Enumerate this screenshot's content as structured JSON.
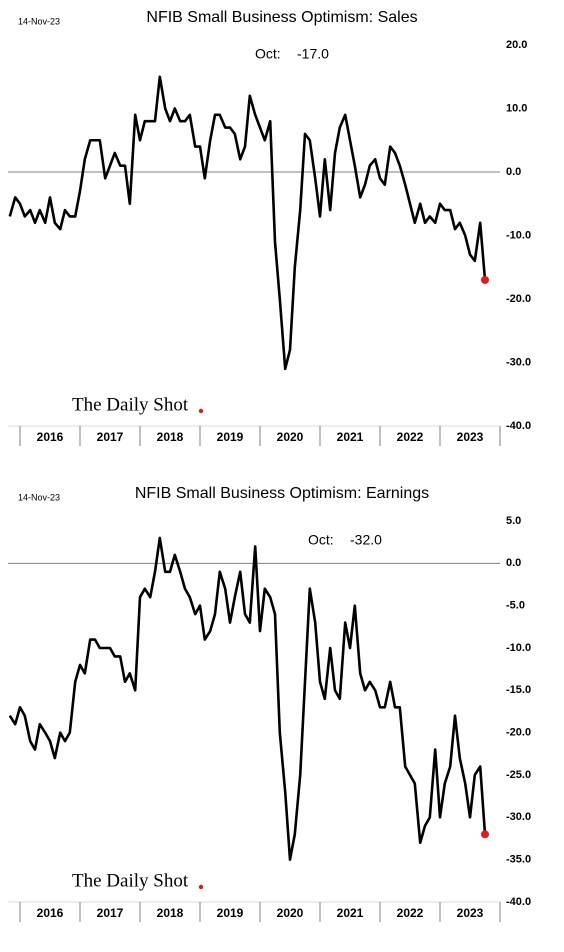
{
  "chart_data": [
    {
      "type": "line",
      "date": "14-Nov-23",
      "title": "NFIB Small Business Optimism: Sales",
      "last_label": "Oct:",
      "last_value_label": "-17.0",
      "watermark": "The Daily Shot",
      "x": [
        2015.83,
        2015.92,
        2016.0,
        2016.08,
        2016.17,
        2016.25,
        2016.33,
        2016.42,
        2016.5,
        2016.58,
        2016.67,
        2016.75,
        2016.83,
        2016.92,
        2017.0,
        2017.08,
        2017.17,
        2017.25,
        2017.33,
        2017.42,
        2017.5,
        2017.58,
        2017.67,
        2017.75,
        2017.83,
        2017.92,
        2018.0,
        2018.08,
        2018.17,
        2018.25,
        2018.33,
        2018.42,
        2018.5,
        2018.58,
        2018.67,
        2018.75,
        2018.83,
        2018.92,
        2019.0,
        2019.08,
        2019.17,
        2019.25,
        2019.33,
        2019.42,
        2019.5,
        2019.58,
        2019.67,
        2019.75,
        2019.83,
        2019.92,
        2020.0,
        2020.08,
        2020.17,
        2020.25,
        2020.33,
        2020.42,
        2020.5,
        2020.58,
        2020.67,
        2020.75,
        2020.83,
        2020.92,
        2021.0,
        2021.08,
        2021.17,
        2021.25,
        2021.33,
        2021.42,
        2021.5,
        2021.58,
        2021.67,
        2021.75,
        2021.83,
        2021.92,
        2022.0,
        2022.08,
        2022.17,
        2022.25,
        2022.33,
        2022.42,
        2022.5,
        2022.58,
        2022.67,
        2022.75,
        2022.83,
        2022.92,
        2023.0,
        2023.08,
        2023.17,
        2023.25,
        2023.33,
        2023.42,
        2023.5,
        2023.58,
        2023.67,
        2023.75
      ],
      "series": [
        {
          "color": "#000000",
          "marker_color": "#e31a1c",
          "values": [
            -7,
            -4,
            -5,
            -7,
            -6,
            -8,
            -6,
            -8,
            -4,
            -8,
            -9,
            -6,
            -7,
            -7,
            -3,
            2,
            5,
            5,
            5,
            -1,
            1,
            3,
            1,
            1,
            -5,
            9,
            5,
            8,
            8,
            8,
            15,
            10,
            8,
            10,
            8,
            8,
            9,
            4,
            4,
            -1,
            5,
            9,
            9,
            7,
            7,
            6,
            2,
            4,
            12,
            9,
            7,
            5,
            8,
            -11,
            -20,
            -31,
            -28,
            -15,
            -6,
            6,
            5,
            -1,
            -7,
            2,
            -6,
            3,
            7,
            9,
            5,
            1,
            -4,
            -2,
            1,
            2,
            -1,
            -2,
            4,
            3,
            1,
            -2,
            -5,
            -8,
            -5,
            -8,
            -7,
            -8,
            -5,
            -6,
            -6,
            -9,
            -8,
            -10,
            -13,
            -14,
            -8,
            -17
          ]
        }
      ],
      "xlim": [
        2015.7,
        2024.0
      ],
      "xticks": [
        {
          "value": 2016.5,
          "label": "2016"
        },
        {
          "value": 2017.5,
          "label": "2017"
        },
        {
          "value": 2018.5,
          "label": "2018"
        },
        {
          "value": 2019.5,
          "label": "2019"
        },
        {
          "value": 2020.5,
          "label": "2020"
        },
        {
          "value": 2021.5,
          "label": "2021"
        },
        {
          "value": 2022.5,
          "label": "2022"
        },
        {
          "value": 2023.5,
          "label": "2023"
        }
      ],
      "ylim": [
        -40,
        20
      ],
      "yticks": [
        {
          "value": 20,
          "label": "20.0"
        },
        {
          "value": 10,
          "label": "10.0"
        },
        {
          "value": 0,
          "label": "0.0"
        },
        {
          "value": -10,
          "label": "-10.0"
        },
        {
          "value": -20,
          "label": "-20.0"
        },
        {
          "value": -30,
          "label": "-30.0"
        },
        {
          "value": -40,
          "label": "-40.0"
        }
      ],
      "zero_line": true
    },
    {
      "type": "line",
      "date": "14-Nov-23",
      "title": "NFIB Small Business Optimism: Earnings",
      "last_label": "Oct:",
      "last_value_label": "-32.0",
      "watermark": "The Daily Shot",
      "x": [
        2015.83,
        2015.92,
        2016.0,
        2016.08,
        2016.17,
        2016.25,
        2016.33,
        2016.42,
        2016.5,
        2016.58,
        2016.67,
        2016.75,
        2016.83,
        2016.92,
        2017.0,
        2017.08,
        2017.17,
        2017.25,
        2017.33,
        2017.42,
        2017.5,
        2017.58,
        2017.67,
        2017.75,
        2017.83,
        2017.92,
        2018.0,
        2018.08,
        2018.17,
        2018.25,
        2018.33,
        2018.42,
        2018.5,
        2018.58,
        2018.67,
        2018.75,
        2018.83,
        2018.92,
        2019.0,
        2019.08,
        2019.17,
        2019.25,
        2019.33,
        2019.42,
        2019.5,
        2019.58,
        2019.67,
        2019.75,
        2019.83,
        2019.92,
        2020.0,
        2020.08,
        2020.17,
        2020.25,
        2020.33,
        2020.42,
        2020.5,
        2020.58,
        2020.67,
        2020.75,
        2020.83,
        2020.92,
        2021.0,
        2021.08,
        2021.17,
        2021.25,
        2021.33,
        2021.42,
        2021.5,
        2021.58,
        2021.67,
        2021.75,
        2021.83,
        2021.92,
        2022.0,
        2022.08,
        2022.17,
        2022.25,
        2022.33,
        2022.42,
        2022.5,
        2022.58,
        2022.67,
        2022.75,
        2022.83,
        2022.92,
        2023.0,
        2023.08,
        2023.17,
        2023.25,
        2023.33,
        2023.42,
        2023.5,
        2023.58,
        2023.67,
        2023.75
      ],
      "series": [
        {
          "color": "#000000",
          "marker_color": "#e31a1c",
          "values": [
            -18,
            -19,
            -17,
            -18,
            -21,
            -22,
            -19,
            -20,
            -21,
            -23,
            -20,
            -21,
            -20,
            -14,
            -12,
            -13,
            -9,
            -9,
            -10,
            -10,
            -10,
            -11,
            -11,
            -14,
            -13,
            -15,
            -4,
            -3,
            -4,
            -1,
            3,
            -1,
            -1,
            1,
            -1,
            -3,
            -4,
            -6,
            -5,
            -9,
            -8,
            -6,
            -1,
            -3,
            -7,
            -4,
            -1,
            -6,
            -7,
            2,
            -8,
            -3,
            -4,
            -6,
            -20,
            -27,
            -35,
            -32,
            -25,
            -14,
            -3,
            -7,
            -14,
            -16,
            -10,
            -15,
            -16,
            -7,
            -10,
            -5,
            -13,
            -15,
            -14,
            -15,
            -17,
            -17,
            -14,
            -17,
            -17,
            -24,
            -25,
            -26,
            -33,
            -31,
            -30,
            -22,
            -30,
            -26,
            -24,
            -18,
            -23,
            -26,
            -30,
            -25,
            -24,
            -32
          ]
        }
      ],
      "xlim": [
        2015.7,
        2024.0
      ],
      "xticks": [
        {
          "value": 2016.5,
          "label": "2016"
        },
        {
          "value": 2017.5,
          "label": "2017"
        },
        {
          "value": 2018.5,
          "label": "2018"
        },
        {
          "value": 2019.5,
          "label": "2019"
        },
        {
          "value": 2020.5,
          "label": "2020"
        },
        {
          "value": 2021.5,
          "label": "2021"
        },
        {
          "value": 2022.5,
          "label": "2022"
        },
        {
          "value": 2023.5,
          "label": "2023"
        }
      ],
      "ylim": [
        -40,
        5
      ],
      "yticks": [
        {
          "value": 5,
          "label": "5.0"
        },
        {
          "value": 0,
          "label": "0.0"
        },
        {
          "value": -5,
          "label": "-5.0"
        },
        {
          "value": -10,
          "label": "-10.0"
        },
        {
          "value": -15,
          "label": "-15.0"
        },
        {
          "value": -20,
          "label": "-20.0"
        },
        {
          "value": -25,
          "label": "-25.0"
        },
        {
          "value": -30,
          "label": "-30.0"
        },
        {
          "value": -35,
          "label": "-35.0"
        },
        {
          "value": -40,
          "label": "-40.0"
        }
      ],
      "zero_line": true
    }
  ]
}
